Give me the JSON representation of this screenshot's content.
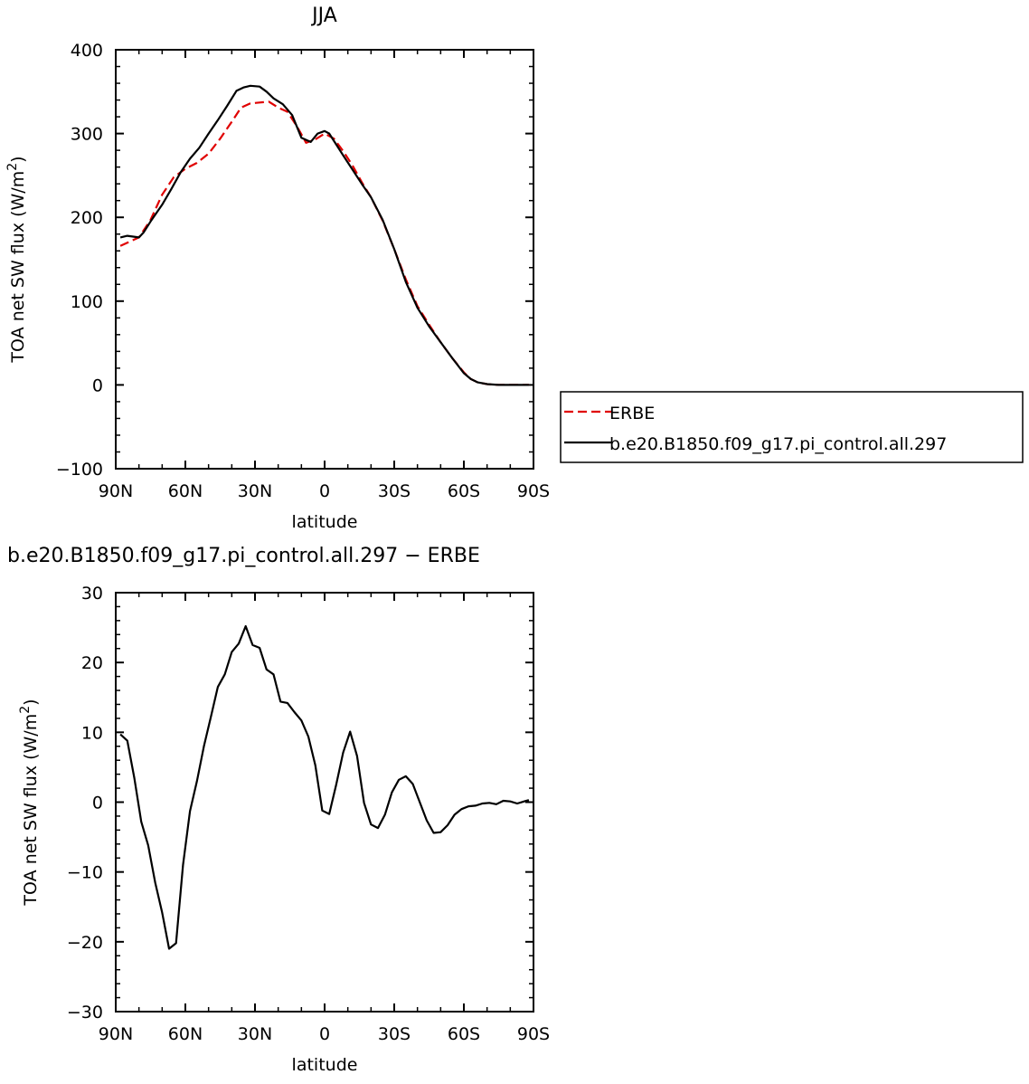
{
  "chart_data": [
    {
      "type": "line",
      "title": "JJA",
      "xlabel": "latitude",
      "ylabel": "TOA net SW flux (W/m²)",
      "xlim": [
        90,
        -90
      ],
      "ylim": [
        -100,
        400
      ],
      "x_ticks": [
        90,
        60,
        30,
        0,
        -30,
        -60,
        -90
      ],
      "x_tick_labels": [
        "90N",
        "60N",
        "30N",
        "0",
        "30S",
        "60S",
        "90S"
      ],
      "y_ticks": [
        -100,
        0,
        100,
        200,
        300,
        400
      ],
      "y_tick_labels": [
        "−100",
        "0",
        "100",
        "200",
        "300",
        "400"
      ],
      "legend": "right",
      "series": [
        {
          "name": "ERBE",
          "color": "#e00000",
          "dash": "dashed",
          "x": [
            88,
            80,
            75,
            70,
            65,
            60,
            55,
            50,
            45,
            40,
            36,
            32,
            28,
            24,
            20,
            16,
            12,
            8,
            4,
            0,
            -4,
            -8,
            -12,
            -16,
            -20,
            -25,
            -30,
            -35,
            -40,
            -45,
            -50,
            -55,
            -60,
            -63,
            -66,
            -70,
            -75,
            -80,
            -85,
            -88
          ],
          "y": [
            166,
            176,
            197,
            227,
            248,
            258,
            265,
            276,
            294,
            314,
            331,
            336,
            337,
            338,
            331,
            326,
            309,
            289,
            293,
            300,
            294,
            279,
            262,
            242,
            224,
            196,
            162,
            126,
            94,
            72,
            51,
            32,
            15,
            7,
            3,
            1,
            0,
            0,
            0,
            0
          ]
        },
        {
          "name": "b.e20.B1850.f09_g17.pi_control.all.297",
          "color": "#000000",
          "dash": "solid",
          "x": [
            88,
            85,
            80,
            78,
            75,
            70,
            66,
            62,
            58,
            54,
            50,
            46,
            42,
            38,
            35,
            32,
            28,
            25,
            22,
            18,
            14,
            10,
            6,
            3,
            0,
            -2,
            -5,
            -8,
            -12,
            -16,
            -20,
            -25,
            -30,
            -35,
            -40,
            -45,
            -50,
            -55,
            -60,
            -63,
            -66,
            -70,
            -75,
            -80,
            -85,
            -88
          ],
          "y": [
            176,
            178,
            176,
            182,
            195,
            215,
            234,
            254,
            270,
            283,
            300,
            316,
            333,
            351,
            355,
            357,
            356,
            350,
            342,
            335,
            322,
            295,
            290,
            300,
            303,
            300,
            287,
            274,
            257,
            240,
            224,
            197,
            162,
            123,
            92,
            70,
            51,
            32,
            14,
            7,
            3,
            1,
            0,
            0,
            0,
            0
          ]
        }
      ]
    },
    {
      "type": "line",
      "title": "b.e20.B1850.f09_g17.pi_control.all.297 − ERBE",
      "xlabel": "latitude",
      "ylabel": "TOA net SW flux (W/m²)",
      "xlim": [
        90,
        -90
      ],
      "ylim": [
        -30,
        30
      ],
      "x_ticks": [
        90,
        60,
        30,
        0,
        -30,
        -60,
        -90
      ],
      "x_tick_labels": [
        "90N",
        "60N",
        "30N",
        "0",
        "30S",
        "60S",
        "90S"
      ],
      "y_ticks": [
        -30,
        -20,
        -10,
        0,
        10,
        20,
        30
      ],
      "y_tick_labels": [
        "−30",
        "−20",
        "−10",
        "0",
        "10",
        "20",
        "30"
      ],
      "series": [
        {
          "color": "#000000",
          "dash": "solid",
          "x": [
            88,
            85,
            82,
            79,
            76,
            73,
            70,
            67,
            64,
            61,
            58,
            55,
            52,
            49,
            46,
            43,
            40,
            37,
            34,
            31,
            28,
            25,
            22,
            19,
            16,
            13,
            10,
            7,
            4,
            1,
            -2,
            -5,
            -8,
            -11,
            -14,
            -17,
            -20,
            -23,
            -26,
            -29,
            -32,
            -35,
            -38,
            -41,
            -44,
            -47,
            -50,
            -53,
            -56,
            -59,
            -62,
            -65,
            -68,
            -71,
            -74,
            -77,
            -80,
            -83,
            -86,
            -88
          ],
          "y": [
            9.7,
            8.8,
            3.5,
            -2.8,
            -6.2,
            -11.5,
            -15.8,
            -21.0,
            -20.2,
            -9.0,
            -1.3,
            3.0,
            8.0,
            12.2,
            16.5,
            18.3,
            21.5,
            22.7,
            25.2,
            22.5,
            22.1,
            19.0,
            18.3,
            14.4,
            14.2,
            12.9,
            11.7,
            9.4,
            5.3,
            -1.2,
            -1.7,
            2.5,
            7.1,
            10.1,
            6.6,
            -0.1,
            -3.2,
            -3.7,
            -1.8,
            1.4,
            3.2,
            3.7,
            2.6,
            0.0,
            -2.6,
            -4.4,
            -4.3,
            -3.3,
            -1.8,
            -1.0,
            -0.6,
            -0.5,
            -0.2,
            -0.1,
            -0.3,
            0.2,
            0.1,
            -0.2,
            0.1,
            0.3
          ]
        }
      ]
    }
  ]
}
